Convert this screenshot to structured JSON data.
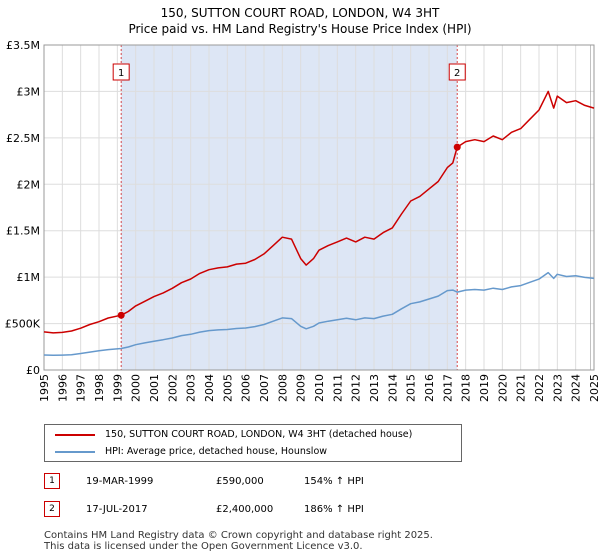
{
  "title_line1": "150, SUTTON COURT ROAD, LONDON, W4 3HT",
  "title_line2": "Price paid vs. HM Land Registry's House Price Index (HPI)",
  "legend": {
    "property_label": "150, SUTTON COURT ROAD, LONDON, W4 3HT (detached house)",
    "hpi_label": "HPI: Average price, detached house, Hounslow"
  },
  "sales": [
    {
      "id": "1",
      "date": "19-MAR-1999",
      "price": "£590,000",
      "hpi": "154% ↑ HPI"
    },
    {
      "id": "2",
      "date": "17-JUL-2017",
      "price": "£2,400,000",
      "hpi": "186% ↑ HPI"
    }
  ],
  "footer": {
    "line1": "Contains HM Land Registry data © Crown copyright and database right 2025.",
    "line2": "This data is licensed under the Open Government Licence v3.0."
  },
  "colors": {
    "property": "#cc0000",
    "hpi": "#6699cc",
    "shade": "#dde6f5",
    "grid": "#dddddd"
  },
  "chart_data": {
    "type": "line",
    "xlim": [
      1995,
      2025
    ],
    "ylim": [
      0,
      3500000
    ],
    "x_ticks": [
      "1995",
      "1996",
      "1997",
      "1998",
      "1999",
      "2000",
      "2001",
      "2002",
      "2003",
      "2004",
      "2005",
      "2006",
      "2007",
      "2008",
      "2009",
      "2010",
      "2011",
      "2012",
      "2013",
      "2014",
      "2015",
      "2016",
      "2017",
      "2018",
      "2019",
      "2020",
      "2021",
      "2022",
      "2023",
      "2024",
      "2025"
    ],
    "y_ticks": [
      {
        "value": 0,
        "label": "£0"
      },
      {
        "value": 500000,
        "label": "£500K"
      },
      {
        "value": 1000000,
        "label": "£1M"
      },
      {
        "value": 1500000,
        "label": "£1.5M"
      },
      {
        "value": 2000000,
        "label": "£2M"
      },
      {
        "value": 2500000,
        "label": "£2.5M"
      },
      {
        "value": 3000000,
        "label": "£3M"
      },
      {
        "value": 3500000,
        "label": "£3.5M"
      }
    ],
    "shaded_range": [
      1999.21,
      2017.54
    ],
    "sale_markers": [
      {
        "label": "1",
        "x": 1999.21,
        "y": 590000
      },
      {
        "label": "2",
        "x": 2017.54,
        "y": 2400000
      }
    ],
    "series": [
      {
        "name": "150, SUTTON COURT ROAD, LONDON, W4 3HT (detached house)",
        "color": "#cc0000",
        "points": [
          [
            1995.0,
            410000
          ],
          [
            1995.5,
            400000
          ],
          [
            1996.0,
            405000
          ],
          [
            1996.5,
            420000
          ],
          [
            1997.0,
            450000
          ],
          [
            1997.5,
            490000
          ],
          [
            1998.0,
            520000
          ],
          [
            1998.5,
            560000
          ],
          [
            1999.21,
            590000
          ],
          [
            1999.6,
            630000
          ],
          [
            2000.0,
            690000
          ],
          [
            2000.5,
            740000
          ],
          [
            2001.0,
            790000
          ],
          [
            2001.5,
            830000
          ],
          [
            2002.0,
            880000
          ],
          [
            2002.5,
            940000
          ],
          [
            2003.0,
            980000
          ],
          [
            2003.5,
            1040000
          ],
          [
            2004.0,
            1080000
          ],
          [
            2004.5,
            1100000
          ],
          [
            2005.0,
            1110000
          ],
          [
            2005.5,
            1140000
          ],
          [
            2006.0,
            1150000
          ],
          [
            2006.5,
            1190000
          ],
          [
            2007.0,
            1250000
          ],
          [
            2007.5,
            1340000
          ],
          [
            2008.0,
            1430000
          ],
          [
            2008.5,
            1410000
          ],
          [
            2009.0,
            1200000
          ],
          [
            2009.3,
            1130000
          ],
          [
            2009.7,
            1200000
          ],
          [
            2010.0,
            1290000
          ],
          [
            2010.5,
            1340000
          ],
          [
            2011.0,
            1380000
          ],
          [
            2011.5,
            1420000
          ],
          [
            2012.0,
            1380000
          ],
          [
            2012.5,
            1430000
          ],
          [
            2013.0,
            1410000
          ],
          [
            2013.5,
            1480000
          ],
          [
            2014.0,
            1530000
          ],
          [
            2014.5,
            1680000
          ],
          [
            2015.0,
            1820000
          ],
          [
            2015.5,
            1870000
          ],
          [
            2016.0,
            1950000
          ],
          [
            2016.5,
            2030000
          ],
          [
            2017.0,
            2180000
          ],
          [
            2017.3,
            2230000
          ],
          [
            2017.54,
            2400000
          ],
          [
            2018.0,
            2460000
          ],
          [
            2018.5,
            2480000
          ],
          [
            2019.0,
            2460000
          ],
          [
            2019.5,
            2520000
          ],
          [
            2020.0,
            2480000
          ],
          [
            2020.5,
            2560000
          ],
          [
            2021.0,
            2600000
          ],
          [
            2021.5,
            2700000
          ],
          [
            2022.0,
            2800000
          ],
          [
            2022.5,
            3000000
          ],
          [
            2022.8,
            2820000
          ],
          [
            2023.0,
            2950000
          ],
          [
            2023.5,
            2880000
          ],
          [
            2024.0,
            2900000
          ],
          [
            2024.5,
            2850000
          ],
          [
            2025.0,
            2820000
          ]
        ]
      },
      {
        "name": "HPI: Average price, detached house, Hounslow",
        "color": "#6699cc",
        "points": [
          [
            1995.0,
            162000
          ],
          [
            1995.5,
            158000
          ],
          [
            1996.0,
            160000
          ],
          [
            1996.5,
            165000
          ],
          [
            1997.0,
            178000
          ],
          [
            1997.5,
            193000
          ],
          [
            1998.0,
            207000
          ],
          [
            1998.5,
            220000
          ],
          [
            1999.21,
            232000
          ],
          [
            1999.6,
            248000
          ],
          [
            2000.0,
            272000
          ],
          [
            2000.5,
            292000
          ],
          [
            2001.0,
            310000
          ],
          [
            2001.5,
            326000
          ],
          [
            2002.0,
            345000
          ],
          [
            2002.5,
            370000
          ],
          [
            2003.0,
            385000
          ],
          [
            2003.5,
            408000
          ],
          [
            2004.0,
            424000
          ],
          [
            2004.5,
            432000
          ],
          [
            2005.0,
            436000
          ],
          [
            2005.5,
            447000
          ],
          [
            2006.0,
            452000
          ],
          [
            2006.5,
            467000
          ],
          [
            2007.0,
            490000
          ],
          [
            2007.5,
            526000
          ],
          [
            2008.0,
            561000
          ],
          [
            2008.5,
            553000
          ],
          [
            2009.0,
            471000
          ],
          [
            2009.3,
            444000
          ],
          [
            2009.7,
            471000
          ],
          [
            2010.0,
            506000
          ],
          [
            2010.5,
            526000
          ],
          [
            2011.0,
            541000
          ],
          [
            2011.5,
            557000
          ],
          [
            2012.0,
            541000
          ],
          [
            2012.5,
            561000
          ],
          [
            2013.0,
            553000
          ],
          [
            2013.5,
            580000
          ],
          [
            2014.0,
            600000
          ],
          [
            2014.5,
            659000
          ],
          [
            2015.0,
            714000
          ],
          [
            2015.5,
            733000
          ],
          [
            2016.0,
            765000
          ],
          [
            2016.5,
            796000
          ],
          [
            2017.0,
            855000
          ],
          [
            2017.3,
            860000
          ],
          [
            2017.54,
            839000
          ],
          [
            2018.0,
            860000
          ],
          [
            2018.5,
            867000
          ],
          [
            2019.0,
            860000
          ],
          [
            2019.5,
            881000
          ],
          [
            2020.0,
            867000
          ],
          [
            2020.5,
            895000
          ],
          [
            2021.0,
            909000
          ],
          [
            2021.5,
            944000
          ],
          [
            2022.0,
            979000
          ],
          [
            2022.5,
            1049000
          ],
          [
            2022.8,
            986000
          ],
          [
            2023.0,
            1031000
          ],
          [
            2023.5,
            1007000
          ],
          [
            2024.0,
            1014000
          ],
          [
            2024.5,
            997000
          ],
          [
            2025.0,
            986000
          ]
        ]
      }
    ]
  }
}
